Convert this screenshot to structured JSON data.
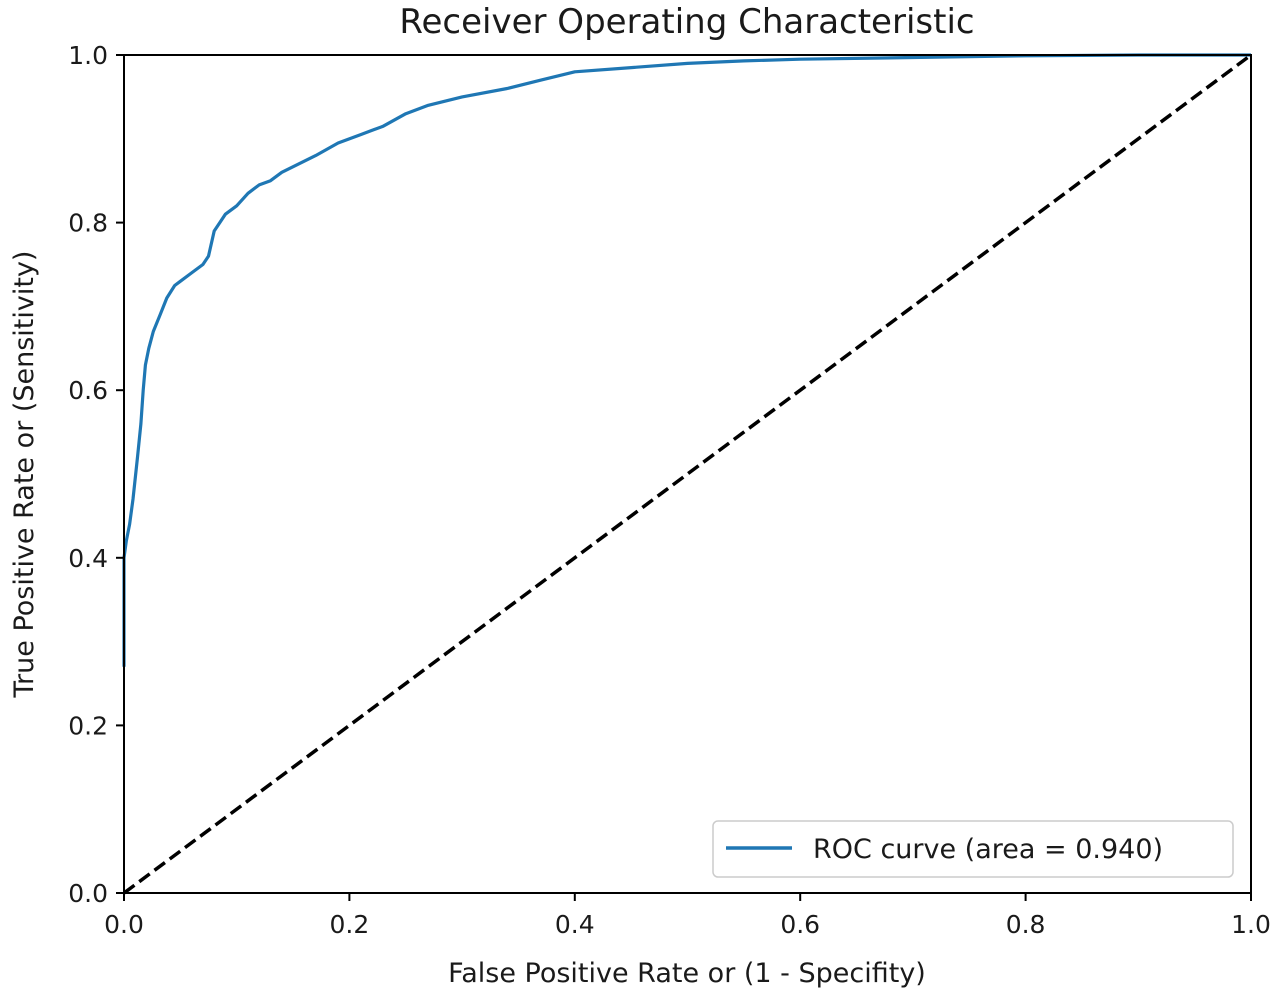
{
  "chart_data": {
    "type": "line",
    "title": "Receiver Operating Characteristic",
    "xlabel": "False Positive Rate or (1 - Specifity)",
    "ylabel": "True Positive Rate or (Sensitivity)",
    "xlim": [
      0.0,
      1.0
    ],
    "ylim": [
      0.0,
      1.0
    ],
    "xticks": [
      "0.0",
      "0.2",
      "0.4",
      "0.6",
      "0.8",
      "1.0"
    ],
    "yticks": [
      "0.0",
      "0.2",
      "0.4",
      "0.6",
      "0.8",
      "1.0"
    ],
    "grid": false,
    "legend_position": "lower-right",
    "series": [
      {
        "name": "ROC curve (area = 0.940)",
        "color": "#1f77b4",
        "style": "solid",
        "x": [
          0.0,
          0.0,
          0.002,
          0.005,
          0.008,
          0.012,
          0.015,
          0.017,
          0.019,
          0.022,
          0.026,
          0.032,
          0.038,
          0.045,
          0.05,
          0.06,
          0.07,
          0.075,
          0.08,
          0.085,
          0.09,
          0.1,
          0.11,
          0.12,
          0.13,
          0.14,
          0.155,
          0.17,
          0.19,
          0.21,
          0.22,
          0.23,
          0.25,
          0.27,
          0.3,
          0.34,
          0.37,
          0.4,
          0.45,
          0.5,
          0.55,
          0.6,
          0.7,
          0.8,
          0.9,
          1.0
        ],
        "y": [
          0.27,
          0.4,
          0.42,
          0.44,
          0.47,
          0.52,
          0.56,
          0.6,
          0.63,
          0.65,
          0.67,
          0.69,
          0.71,
          0.725,
          0.73,
          0.74,
          0.75,
          0.76,
          0.79,
          0.8,
          0.81,
          0.82,
          0.835,
          0.845,
          0.85,
          0.86,
          0.87,
          0.88,
          0.895,
          0.905,
          0.91,
          0.915,
          0.93,
          0.94,
          0.95,
          0.96,
          0.97,
          0.98,
          0.985,
          0.99,
          0.993,
          0.995,
          0.997,
          0.999,
          1.0,
          1.0
        ]
      },
      {
        "name": "",
        "color": "#000000",
        "style": "dashed",
        "x": [
          0.0,
          1.0
        ],
        "y": [
          0.0,
          1.0
        ]
      }
    ]
  }
}
